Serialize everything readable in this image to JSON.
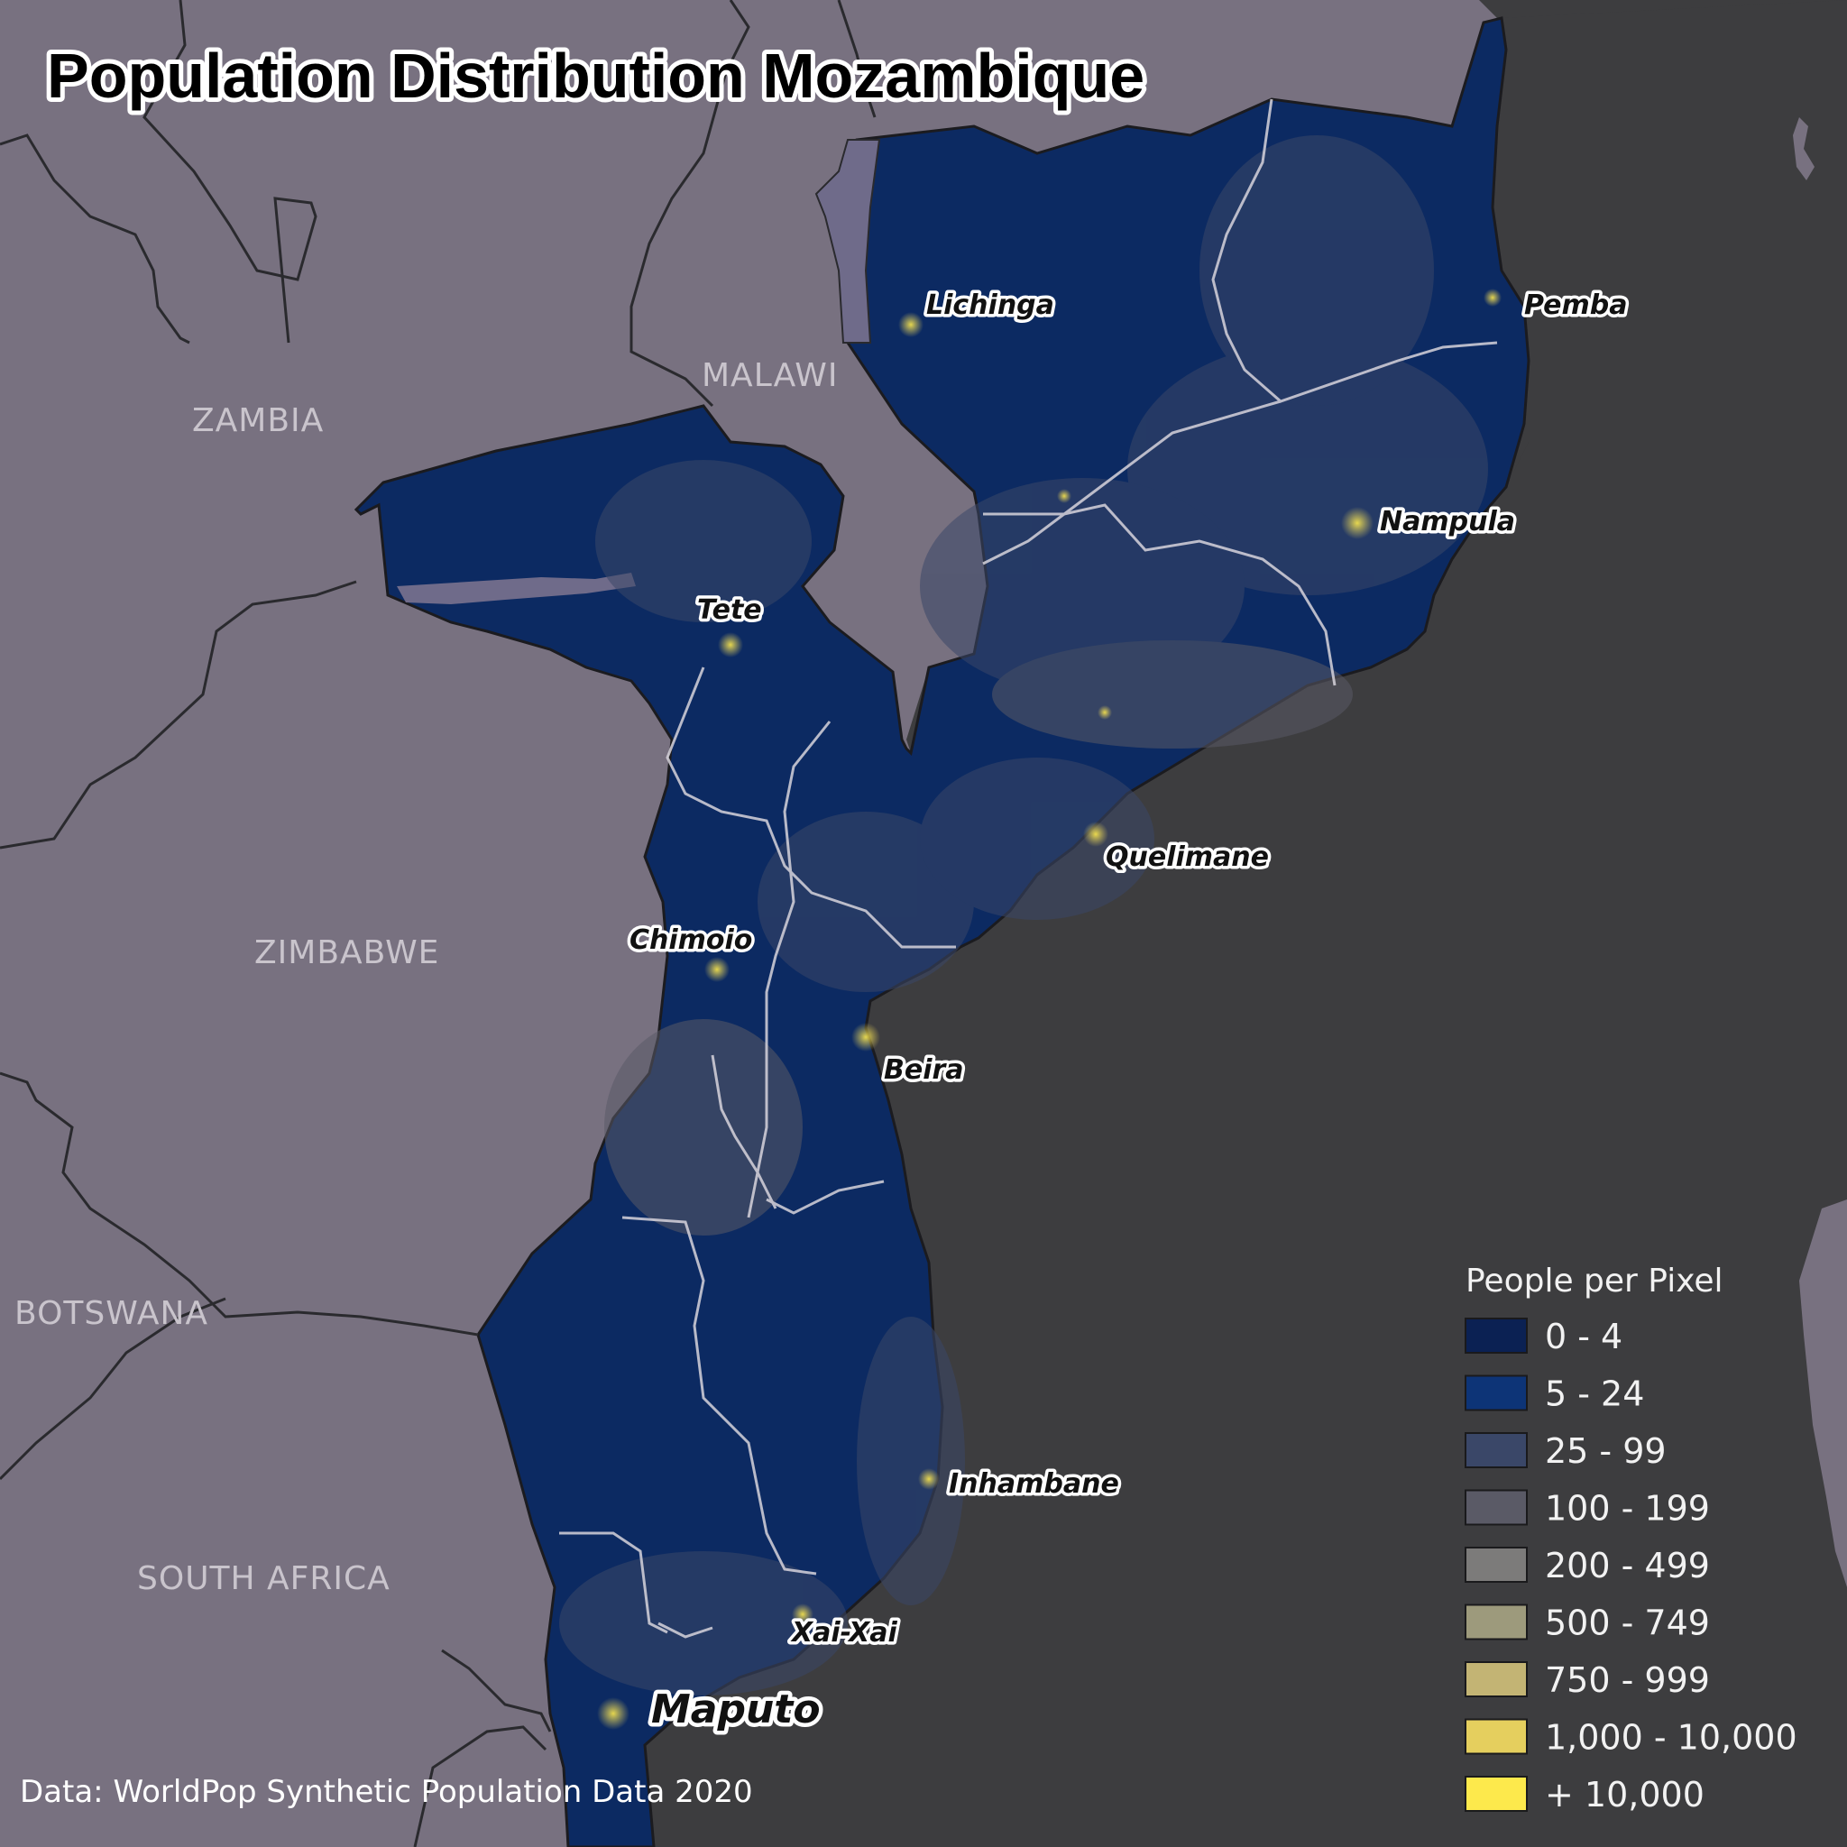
{
  "title": "Population Distribution Mozambique",
  "source": "Data: WorldPop Synthetic Population Data 2020",
  "countries": {
    "zambia": "ZAMBIA",
    "malawi": "MALAWI",
    "zimbabwe": "ZIMBABWE",
    "botswana": "BOTSWANA",
    "south_africa": "SOUTH AFRICA"
  },
  "cities": {
    "lichinga": "Lichinga",
    "pemba": "Pemba",
    "nampula": "Nampula",
    "tete": "Tete",
    "quelimane": "Quelimane",
    "chimoio": "Chimoio",
    "beira": "Beira",
    "inhambane": "Inhambane",
    "xai_xai": "Xai-Xai",
    "maputo": "Maputo"
  },
  "legend": {
    "title": "People per Pixel",
    "items": [
      {
        "label": "0 - 4",
        "color": "#0b2153"
      },
      {
        "label": "5 - 24",
        "color": "#0d3477"
      },
      {
        "label": "25 - 99",
        "color": "#3a4768"
      },
      {
        "label": "100 - 199",
        "color": "#5a5a66"
      },
      {
        "label": "200 - 499",
        "color": "#7c7b7a"
      },
      {
        "label": "500 - 749",
        "color": "#9d9a7c"
      },
      {
        "label": "750 - 999",
        "color": "#c3b474"
      },
      {
        "label": "1,000 - 10,000",
        "color": "#e5cf5e"
      },
      {
        "label": "+ 10,000",
        "color": "#fde94c"
      }
    ]
  },
  "colors": {
    "ocean": "#3d3d3f",
    "land": "#787180",
    "lake": "#6f6b8a",
    "admin_border": "#d7d4dc",
    "country_border": "#2a2a2e"
  }
}
